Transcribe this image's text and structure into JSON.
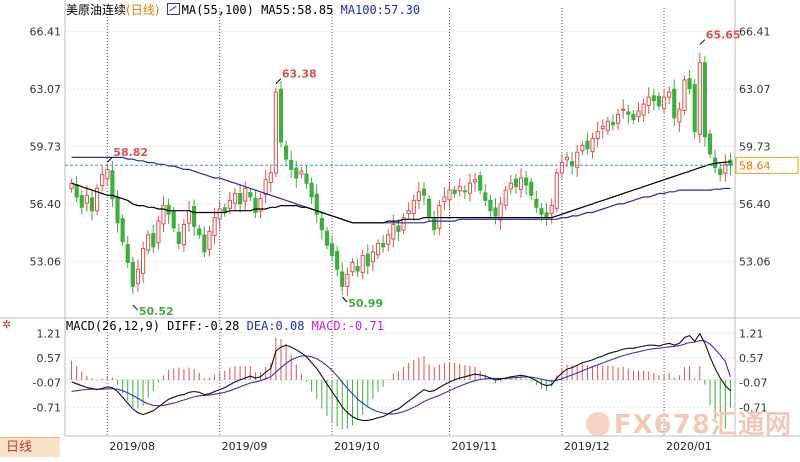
{
  "header": {
    "instrument": "美原油连续",
    "period": "(日线)",
    "ma_label": "MA(55,100)",
    "ma55": "MA55:58.85",
    "ma100": "MA100:57.30"
  },
  "macd_header": {
    "label": "MACD(26,12,9)",
    "diff": "DIFF:-0.28",
    "dea": "DEA:0.08",
    "macd": "MACD:-0.71"
  },
  "period_tab": "日线",
  "watermark": "FX678汇通网",
  "colors": {
    "up": "#d9534f",
    "down": "#3fae3f",
    "ma55": "#000000",
    "ma100": "#2a2aa8",
    "dea": "#3333cc",
    "diff": "#111111",
    "grid": "#cfcfcf",
    "last_price_line": "#3b8fd8",
    "last_price_box": "#f39c12"
  },
  "chart_data": [
    {
      "type": "candlestick",
      "title": "美原油连续(日线)",
      "y_ticks": [
        "66.41",
        "63.07",
        "59.73",
        "56.40",
        "53.06"
      ],
      "y_tick_values": [
        66.41,
        63.07,
        59.73,
        56.4,
        53.06
      ],
      "ylim": [
        50.0,
        67.2
      ],
      "x_ticks": [
        "2019/08",
        "2019/09",
        "2019/10",
        "2019/11",
        "2019/12",
        "2020/01"
      ],
      "x_tick_index": [
        7,
        29,
        51,
        74,
        96,
        116
      ],
      "bars": 130,
      "annotations": [
        {
          "label": "58.82",
          "value": 58.82,
          "index": 7
        },
        {
          "label": "50.52",
          "value": 50.52,
          "index": 12
        },
        {
          "label": "63.38",
          "value": 63.38,
          "index": 40
        },
        {
          "label": "50.99",
          "value": 50.99,
          "index": 53
        },
        {
          "label": "65.65",
          "value": 65.65,
          "index": 123
        }
      ],
      "last_price": {
        "label": "58.64",
        "value": 58.64
      },
      "close": [
        57.6,
        56.8,
        56.2,
        56.9,
        56.0,
        57.3,
        58.1,
        58.4,
        56.7,
        55.3,
        54.2,
        53.0,
        51.6,
        52.6,
        53.8,
        54.6,
        53.9,
        55.4,
        56.3,
        55.8,
        55.0,
        54.1,
        55.2,
        56.0,
        55.1,
        54.6,
        53.6,
        54.8,
        55.6,
        56.1,
        55.9,
        56.6,
        57.0,
        56.4,
        57.3,
        56.8,
        55.9,
        56.7,
        57.8,
        58.2,
        62.9,
        60.0,
        59.0,
        58.4,
        57.9,
        58.3,
        57.6,
        56.8,
        55.8,
        54.9,
        54.0,
        53.4,
        52.6,
        51.6,
        52.3,
        53.0,
        52.5,
        53.4,
        52.8,
        53.6,
        54.1,
        53.9,
        54.6,
        55.2,
        54.8,
        55.6,
        56.0,
        56.6,
        57.1,
        56.9,
        55.6,
        54.9,
        56.3,
        56.8,
        57.2,
        57.0,
        57.4,
        57.1,
        57.6,
        57.8,
        57.2,
        56.6,
        56.0,
        55.7,
        56.4,
        57.2,
        57.6,
        57.4,
        57.9,
        57.5,
        56.9,
        56.2,
        55.8,
        55.6,
        56.3,
        58.2,
        58.8,
        59.1,
        58.6,
        59.4,
        59.8,
        59.6,
        60.2,
        60.6,
        60.9,
        61.2,
        61.0,
        61.6,
        61.9,
        61.6,
        61.3,
        61.8,
        62.2,
        62.6,
        62.4,
        62.1,
        62.6,
        62.9,
        61.4,
        61.9,
        63.6,
        63.1,
        60.6,
        64.6,
        60.3,
        59.3,
        58.5,
        58.1,
        58.7,
        58.64
      ],
      "ma55": [
        57.6,
        57.5,
        57.4,
        57.3,
        57.2,
        57.1,
        57.0,
        56.9,
        56.9,
        56.8,
        56.7,
        56.6,
        56.4,
        56.3,
        56.3,
        56.2,
        56.2,
        56.1,
        56.1,
        56.0,
        56.0,
        56.0,
        56.0,
        56.0,
        55.9,
        55.9,
        55.9,
        55.9,
        55.9,
        55.9,
        55.9,
        56.0,
        56.0,
        56.0,
        56.0,
        56.0,
        56.1,
        56.1,
        56.1,
        56.2,
        56.2,
        56.3,
        56.3,
        56.3,
        56.3,
        56.2,
        56.2,
        56.1,
        56.0,
        55.9,
        55.8,
        55.7,
        55.6,
        55.5,
        55.4,
        55.3,
        55.3,
        55.3,
        55.3,
        55.3,
        55.3,
        55.3,
        55.4,
        55.4,
        55.4,
        55.5,
        55.5,
        55.5,
        55.5,
        55.6,
        55.6,
        55.6,
        55.6,
        55.6,
        55.6,
        55.6,
        55.6,
        55.6,
        55.6,
        55.6,
        55.6,
        55.6,
        55.6,
        55.6,
        55.6,
        55.6,
        55.6,
        55.6,
        55.6,
        55.6,
        55.6,
        55.6,
        55.6,
        55.6,
        55.6,
        55.7,
        55.8,
        55.9,
        56.0,
        56.1,
        56.2,
        56.3,
        56.4,
        56.5,
        56.6,
        56.7,
        56.8,
        56.9,
        57.0,
        57.1,
        57.2,
        57.3,
        57.4,
        57.5,
        57.6,
        57.7,
        57.8,
        57.9,
        58.0,
        58.1,
        58.2,
        58.3,
        58.4,
        58.5,
        58.6,
        58.7,
        58.75,
        58.8,
        58.82,
        58.85
      ],
      "ma100": [
        59.1,
        59.1,
        59.1,
        59.1,
        59.1,
        59.1,
        59.1,
        59.1,
        59.1,
        59.1,
        59.1,
        59.0,
        59.0,
        58.9,
        58.9,
        58.8,
        58.8,
        58.7,
        58.7,
        58.6,
        58.6,
        58.5,
        58.4,
        58.4,
        58.3,
        58.2,
        58.1,
        58.0,
        57.9,
        57.9,
        57.8,
        57.7,
        57.6,
        57.5,
        57.4,
        57.3,
        57.2,
        57.1,
        57.0,
        56.9,
        56.8,
        56.7,
        56.6,
        56.5,
        56.4,
        56.3,
        56.2,
        56.1,
        56.0,
        55.9,
        55.8,
        55.7,
        55.6,
        55.5,
        55.4,
        55.3,
        55.3,
        55.3,
        55.3,
        55.3,
        55.3,
        55.3,
        55.3,
        55.3,
        55.3,
        55.3,
        55.3,
        55.3,
        55.3,
        55.3,
        55.4,
        55.4,
        55.4,
        55.4,
        55.4,
        55.4,
        55.5,
        55.5,
        55.5,
        55.5,
        55.5,
        55.5,
        55.5,
        55.5,
        55.5,
        55.5,
        55.5,
        55.5,
        55.5,
        55.5,
        55.5,
        55.5,
        55.5,
        55.5,
        55.5,
        55.5,
        55.6,
        55.6,
        55.7,
        55.7,
        55.8,
        55.9,
        55.9,
        56.0,
        56.1,
        56.2,
        56.3,
        56.4,
        56.4,
        56.5,
        56.6,
        56.7,
        56.8,
        56.8,
        56.9,
        57.0,
        57.0,
        57.1,
        57.1,
        57.2,
        57.2,
        57.2,
        57.2,
        57.2,
        57.2,
        57.2,
        57.25,
        57.25,
        57.3,
        57.3
      ]
    },
    {
      "type": "macd",
      "title": "MACD(26,12,9)",
      "y_ticks": [
        "1.21",
        "0.57",
        "-0.07",
        "-0.71"
      ],
      "y_tick_values": [
        1.21,
        0.57,
        -0.07,
        -0.71
      ],
      "ylim": [
        -1.35,
        1.45
      ],
      "diff": [
        -0.05,
        -0.1,
        -0.15,
        -0.2,
        -0.22,
        -0.25,
        -0.22,
        -0.18,
        -0.2,
        -0.3,
        -0.45,
        -0.6,
        -0.75,
        -0.85,
        -0.9,
        -0.85,
        -0.8,
        -0.7,
        -0.6,
        -0.5,
        -0.45,
        -0.4,
        -0.38,
        -0.32,
        -0.3,
        -0.32,
        -0.38,
        -0.36,
        -0.3,
        -0.25,
        -0.2,
        -0.12,
        -0.05,
        0.0,
        0.05,
        0.1,
        0.05,
        0.08,
        0.2,
        0.3,
        0.75,
        0.85,
        0.9,
        0.85,
        0.78,
        0.7,
        0.6,
        0.45,
        0.3,
        0.1,
        -0.1,
        -0.3,
        -0.5,
        -0.7,
        -0.85,
        -0.95,
        -1.02,
        -1.05,
        -1.05,
        -1.02,
        -0.98,
        -0.95,
        -0.88,
        -0.8,
        -0.75,
        -0.65,
        -0.55,
        -0.45,
        -0.35,
        -0.25,
        -0.3,
        -0.28,
        -0.2,
        -0.12,
        -0.05,
        0.0,
        0.05,
        0.08,
        0.12,
        0.15,
        0.13,
        0.1,
        0.05,
        0.0,
        0.02,
        0.05,
        0.08,
        0.1,
        0.12,
        0.1,
        0.05,
        -0.02,
        -0.1,
        -0.15,
        -0.12,
        0.05,
        0.18,
        0.28,
        0.32,
        0.38,
        0.45,
        0.48,
        0.52,
        0.58,
        0.62,
        0.68,
        0.72,
        0.75,
        0.8,
        0.82,
        0.82,
        0.85,
        0.88,
        0.9,
        0.9,
        0.88,
        0.92,
        0.95,
        0.9,
        0.95,
        1.1,
        1.15,
        1.0,
        1.2,
        0.95,
        0.6,
        0.3,
        0.05,
        -0.15,
        -0.28
      ],
      "dea": [
        -0.3,
        -0.28,
        -0.26,
        -0.25,
        -0.24,
        -0.24,
        -0.24,
        -0.23,
        -0.23,
        -0.24,
        -0.28,
        -0.33,
        -0.4,
        -0.48,
        -0.56,
        -0.62,
        -0.66,
        -0.67,
        -0.66,
        -0.63,
        -0.6,
        -0.56,
        -0.52,
        -0.48,
        -0.44,
        -0.41,
        -0.4,
        -0.39,
        -0.37,
        -0.35,
        -0.32,
        -0.28,
        -0.23,
        -0.18,
        -0.13,
        -0.08,
        -0.05,
        -0.02,
        0.03,
        0.08,
        0.2,
        0.32,
        0.43,
        0.52,
        0.58,
        0.62,
        0.62,
        0.6,
        0.55,
        0.47,
        0.37,
        0.25,
        0.1,
        -0.06,
        -0.22,
        -0.36,
        -0.5,
        -0.6,
        -0.7,
        -0.77,
        -0.82,
        -0.86,
        -0.88,
        -0.88,
        -0.86,
        -0.82,
        -0.77,
        -0.71,
        -0.64,
        -0.56,
        -0.5,
        -0.45,
        -0.4,
        -0.34,
        -0.28,
        -0.22,
        -0.16,
        -0.11,
        -0.06,
        -0.02,
        0.01,
        0.03,
        0.04,
        0.04,
        0.04,
        0.04,
        0.05,
        0.06,
        0.07,
        0.08,
        0.07,
        0.05,
        0.02,
        -0.01,
        -0.03,
        -0.01,
        0.03,
        0.08,
        0.13,
        0.18,
        0.24,
        0.29,
        0.34,
        0.39,
        0.44,
        0.49,
        0.54,
        0.59,
        0.63,
        0.67,
        0.7,
        0.73,
        0.76,
        0.79,
        0.81,
        0.82,
        0.84,
        0.86,
        0.87,
        0.89,
        0.93,
        0.97,
        0.98,
        1.02,
        1.01,
        0.93,
        0.8,
        0.65,
        0.48,
        0.08
      ]
    }
  ]
}
